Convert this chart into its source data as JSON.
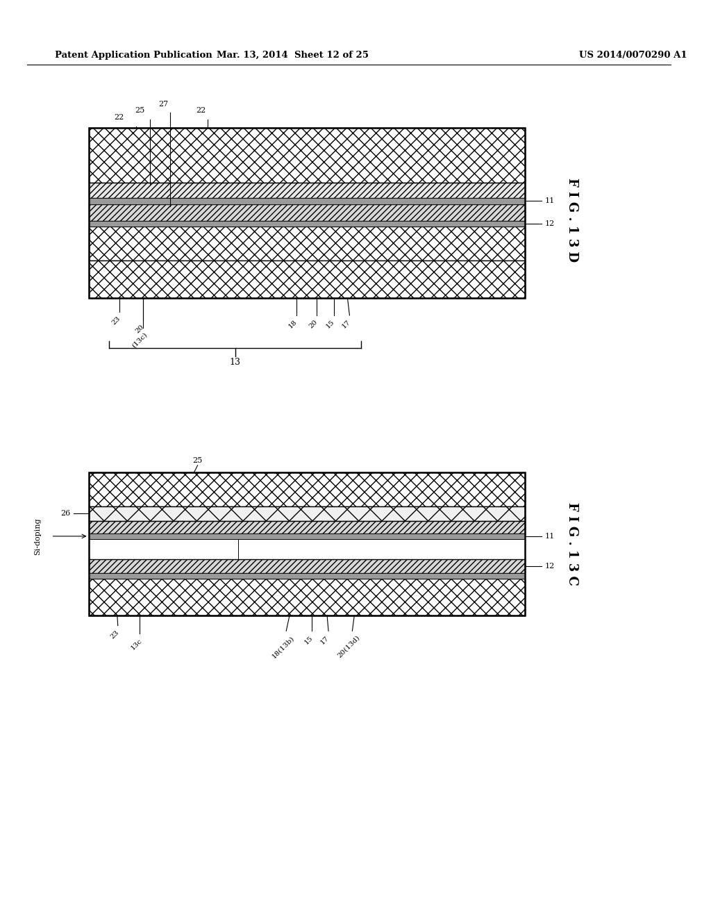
{
  "header_left": "Patent Application Publication",
  "header_mid": "Mar. 13, 2014  Sheet 12 of 25",
  "header_right": "US 2014/0070290 A1",
  "bg_color": "#ffffff"
}
